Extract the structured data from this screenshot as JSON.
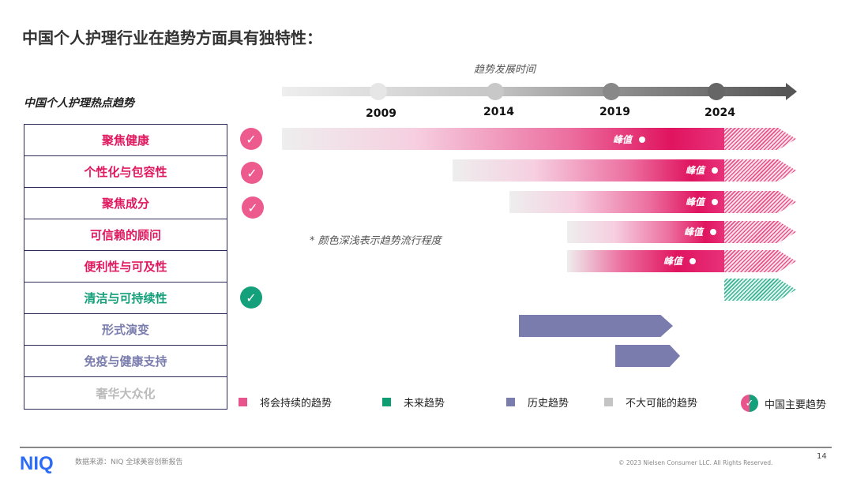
{
  "title": "中国个人护理行业在趋势方面具有独特性：",
  "subtitle": "中国个人护理热点趋势",
  "axis_label": "趋势发展时间",
  "years": [
    "2009",
    "2014",
    "2019",
    "2024"
  ],
  "note": "* 颜色深浅表示趋势流行程度",
  "peak_label": "峰值",
  "trends": [
    {
      "label": "聚焦健康",
      "type": "将会持续的趋势",
      "china_major": true
    },
    {
      "label": "个性化与包容性",
      "type": "将会持续的趋势",
      "china_major": true
    },
    {
      "label": "聚焦成分",
      "type": "将会持续的趋势",
      "china_major": true
    },
    {
      "label": "可信赖的顾问",
      "type": "将会持续的趋势",
      "china_major": false
    },
    {
      "label": "便利性与可及性",
      "type": "将会持续的趋势",
      "china_major": false
    },
    {
      "label": "清洁与可持续性",
      "type": "未来趋势",
      "china_major": true
    },
    {
      "label": "形式演变",
      "type": "历史趋势",
      "china_major": false
    },
    {
      "label": "免疫与健康支持",
      "type": "历史趋势",
      "china_major": false
    },
    {
      "label": "奢华大众化",
      "type": "不大可能的趋势",
      "china_major": false
    }
  ],
  "legend": [
    {
      "label": "将会持续的趋势",
      "color": "#e8558c"
    },
    {
      "label": "未来趋势",
      "color": "#0f9e74"
    },
    {
      "label": "历史趋势",
      "color": "#7a7cae"
    },
    {
      "label": "不大可能的趋势",
      "color": "#c4c4c4"
    },
    {
      "label": "中国主要趋势",
      "color": "#e8558c"
    }
  ],
  "colors": {
    "pink": "#e0195f",
    "green": "#14a07a",
    "purple": "#7a7cae",
    "gray": "#bbbbbb"
  },
  "footer": {
    "logo": "NIQ",
    "source": "数据来源：NIQ 全球美容创新报告",
    "copyright": "© 2023 Nielsen Consumer LLC. All Rights Reserved.",
    "page": "14"
  }
}
